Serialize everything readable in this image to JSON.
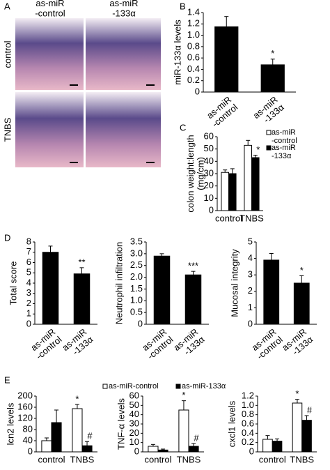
{
  "panels": [
    "A",
    "B",
    "C",
    "D",
    "E"
  ],
  "histology": {
    "columns": [
      "as-miR -control",
      "as-miR -133α"
    ],
    "rows": [
      "control",
      "TNBS"
    ]
  },
  "chart_data": [
    {
      "type": "bar",
      "ylabel": "miR-133α levels",
      "categories": [
        "as-miR -control",
        "as-miR -133α"
      ],
      "values": [
        1.15,
        0.48
      ],
      "errors": [
        0.18,
        0.1
      ],
      "annotations": [
        null,
        "*"
      ],
      "color": "#000000",
      "ylim": [
        0,
        1.4
      ],
      "yticks": [
        0,
        0.2,
        0.4,
        0.6,
        0.8,
        {
          "value": 1,
          "label": "1.0"
        },
        1.2,
        1.4
      ]
    },
    {
      "type": "bar",
      "ylabel": "colon weight:length (mg/cm)",
      "categories": [
        "control",
        "TNBS"
      ],
      "legend": "right",
      "series": [
        {
          "name": "as-miR -control",
          "color": "#ffffff",
          "values": [
            31,
            53
          ],
          "errors": [
            2,
            4
          ],
          "annotations": [
            null,
            null
          ]
        },
        {
          "name": "as-miR -133α",
          "color": "#000000",
          "values": [
            30,
            43
          ],
          "errors": [
            4,
            2
          ],
          "annotations": [
            null,
            "*"
          ]
        }
      ],
      "ylim": [
        0,
        60
      ],
      "yticks": [
        0,
        10,
        20,
        30,
        40,
        50,
        60
      ]
    },
    {
      "type": "bar",
      "ylabel": "Total score",
      "categories": [
        "as-miR -control",
        "as-miR -133α"
      ],
      "values": [
        7.0,
        4.9
      ],
      "errors": [
        0.6,
        0.6
      ],
      "annotations": [
        null,
        "**"
      ],
      "color": "#000000",
      "ylim": [
        0,
        8
      ],
      "yticks": [
        0,
        1,
        2,
        3,
        4,
        5,
        6,
        7,
        8
      ]
    },
    {
      "type": "bar",
      "ylabel": "Neutrophil infiltration",
      "categories": [
        "as-miR -control",
        "as-miR -133α"
      ],
      "values": [
        2.9,
        2.1
      ],
      "errors": [
        0.1,
        0.15
      ],
      "annotations": [
        null,
        "***"
      ],
      "color": "#000000",
      "ylim": [
        0,
        3.5
      ],
      "yticks": [
        0,
        0.5,
        {
          "value": 1,
          "label": "1.0"
        },
        1.5,
        {
          "value": 2,
          "label": "2.0"
        },
        2.5,
        {
          "value": 3,
          "label": "3.0"
        },
        3.5
      ]
    },
    {
      "type": "bar",
      "ylabel": "Mucosal integrity",
      "categories": [
        "as-miR -control",
        "as-miR -133α"
      ],
      "values": [
        3.9,
        2.5
      ],
      "errors": [
        0.4,
        0.45
      ],
      "annotations": [
        null,
        "*"
      ],
      "color": "#000000",
      "ylim": [
        0,
        5
      ],
      "yticks": [
        0,
        1,
        2,
        3,
        4,
        5
      ]
    },
    {
      "type": "bar",
      "ylabel": "lcn2 levels",
      "categories": [
        "control",
        "TNBS"
      ],
      "legend": "top",
      "series": [
        {
          "name": "as-miR-control",
          "color": "#ffffff",
          "values": [
            40,
            155
          ],
          "errors": [
            10,
            15
          ],
          "annotations": [
            null,
            "*"
          ]
        },
        {
          "name": "as-miR-133α",
          "color": "#000000",
          "values": [
            105,
            22
          ],
          "errors": [
            45,
            15
          ],
          "annotations": [
            null,
            "#"
          ]
        }
      ],
      "ylim": [
        0,
        200
      ],
      "yticks": [
        0,
        40,
        80,
        120,
        160,
        200
      ]
    },
    {
      "type": "bar",
      "ylabel": "TNF-α levels",
      "categories": [
        "control",
        "TNBS"
      ],
      "series": [
        {
          "color": "#ffffff",
          "values": [
            6,
            45
          ],
          "errors": [
            2,
            10
          ],
          "annotations": [
            null,
            "*"
          ]
        },
        {
          "color": "#000000",
          "values": [
            2,
            6
          ],
          "errors": [
            1,
            3
          ],
          "annotations": [
            null,
            "#"
          ]
        }
      ],
      "ylim": [
        0,
        60
      ],
      "yticks": [
        0,
        10,
        20,
        30,
        40,
        50,
        60
      ]
    },
    {
      "type": "bar",
      "ylabel": "cxcl1 levels",
      "categories": [
        "control",
        "TNBS"
      ],
      "series": [
        {
          "color": "#ffffff",
          "values": [
            0.27,
            1.05
          ],
          "errors": [
            0.08,
            0.08
          ],
          "annotations": [
            null,
            "*"
          ]
        },
        {
          "color": "#000000",
          "values": [
            0.23,
            0.68
          ],
          "errors": [
            0.05,
            0.1
          ],
          "annotations": [
            null,
            "#"
          ]
        }
      ],
      "ylim": [
        0,
        1.2
      ],
      "yticks": [
        0,
        0.2,
        0.4,
        0.6,
        0.8,
        {
          "value": 1,
          "label": "1.0"
        },
        1.2
      ]
    }
  ]
}
